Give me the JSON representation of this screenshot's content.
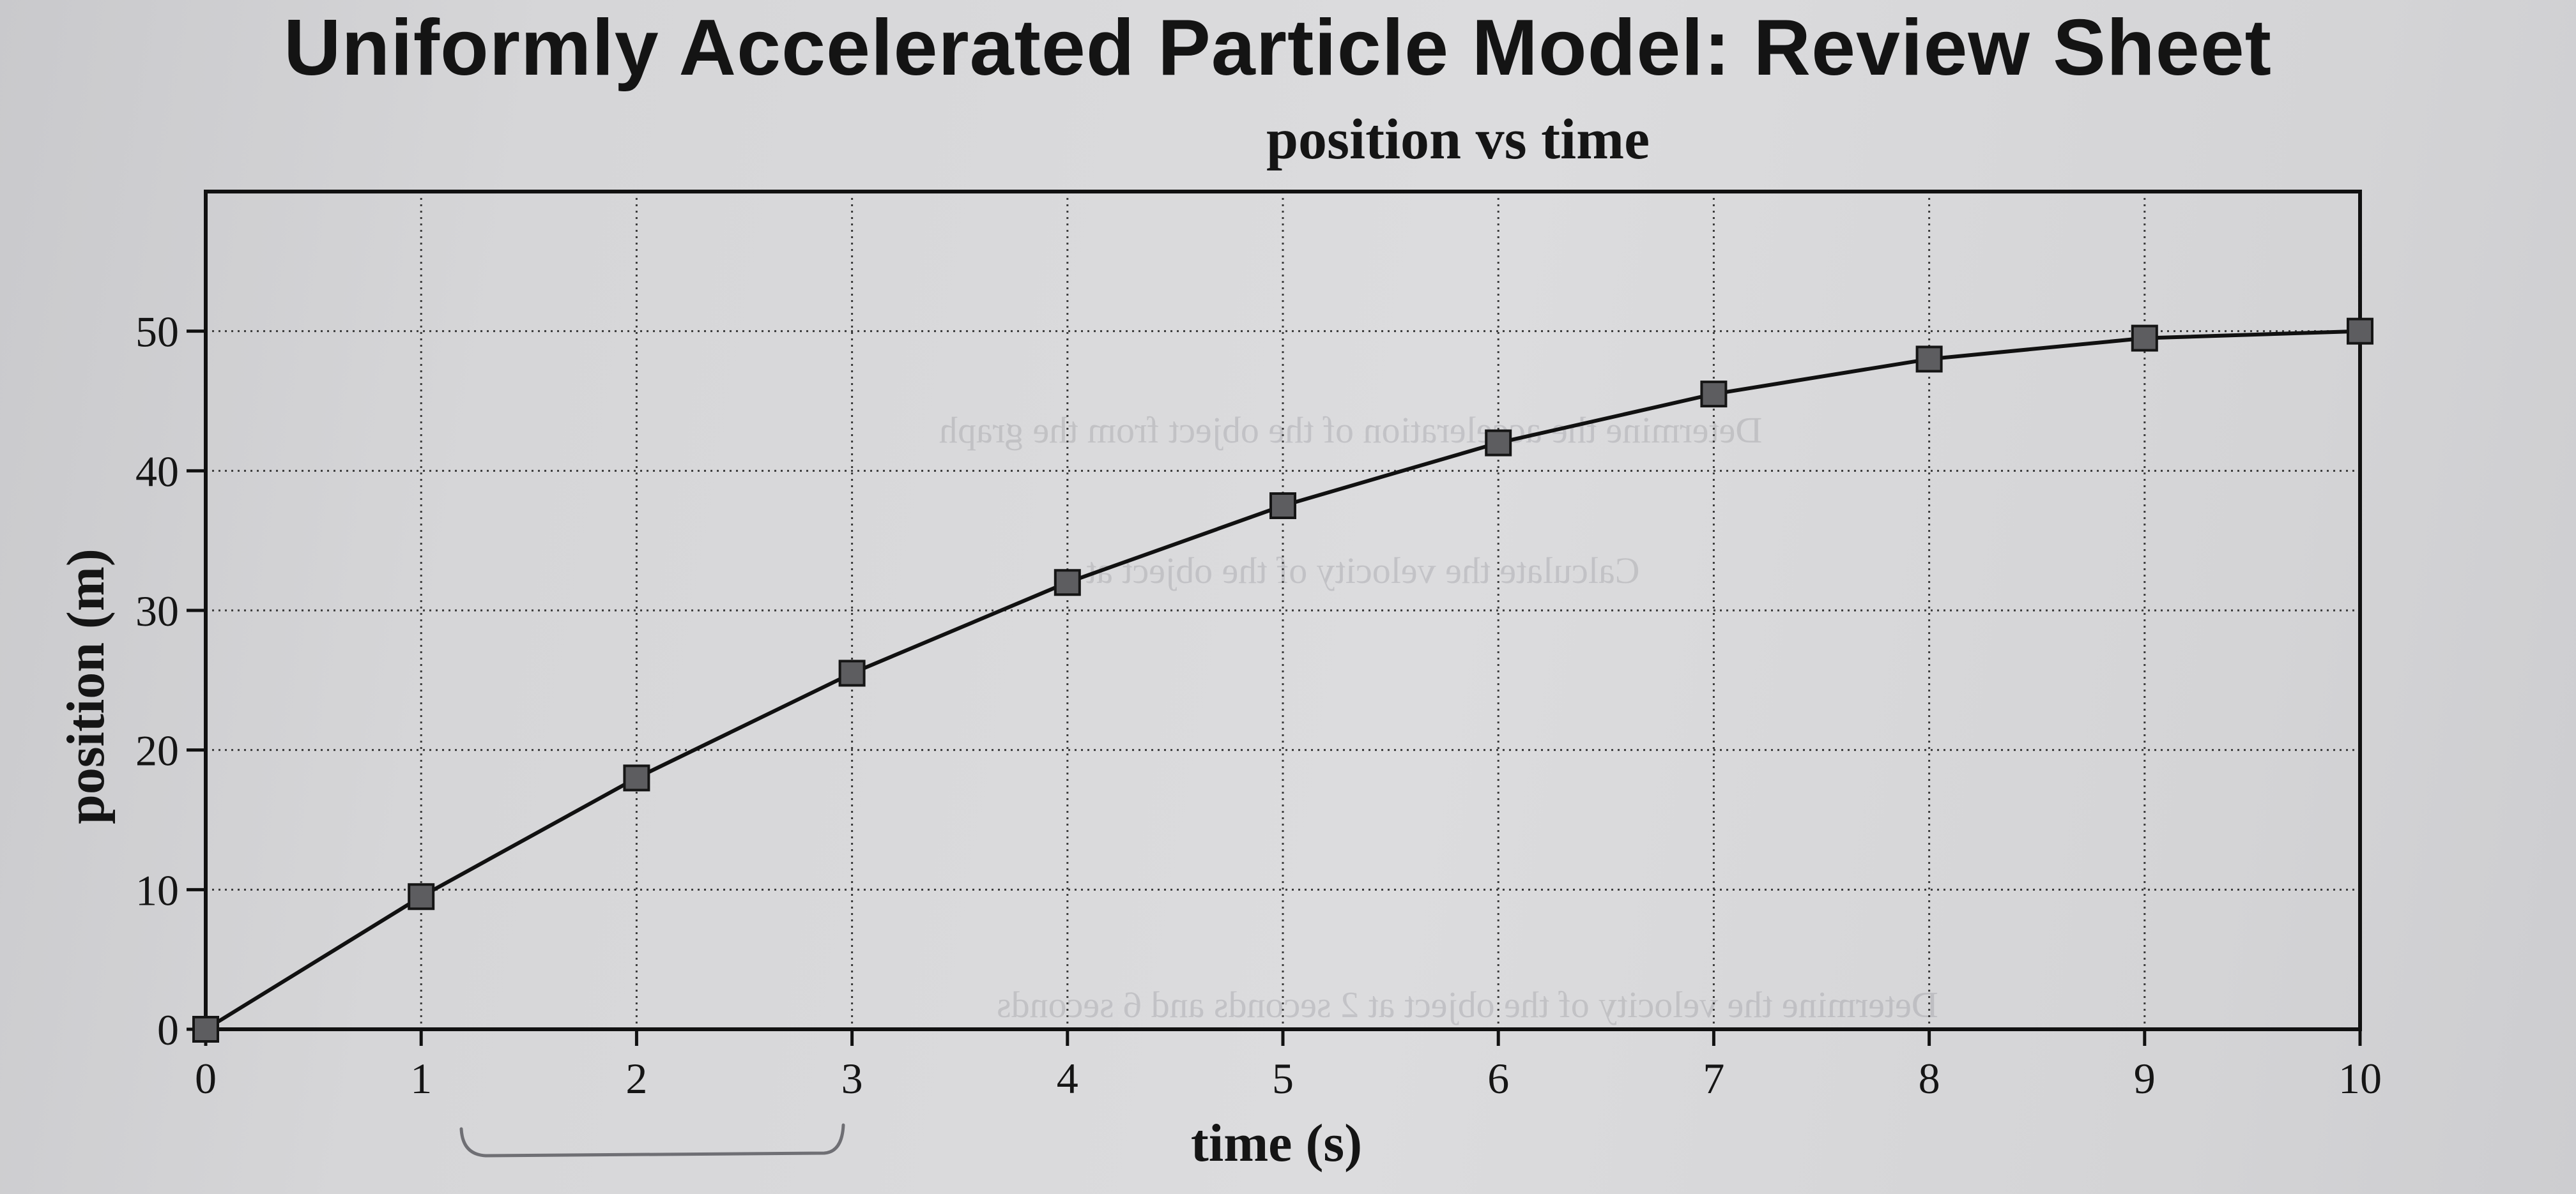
{
  "document": {
    "title": "Uniformly Accelerated Particle Model: Review Sheet"
  },
  "chart_data": {
    "type": "line",
    "title": "position vs time",
    "xlabel": "time (s)",
    "ylabel": "position (m)",
    "xlim": [
      0,
      10
    ],
    "ylim": [
      0,
      60
    ],
    "xticks": [
      0,
      1,
      2,
      3,
      4,
      5,
      6,
      7,
      8,
      9,
      10
    ],
    "yticks": [
      0,
      10,
      20,
      30,
      40,
      50
    ],
    "grid": true,
    "marker": "square",
    "series": [
      {
        "x": [
          0,
          1,
          2,
          3,
          4,
          5,
          6,
          7,
          8,
          9,
          10
        ],
        "y": [
          0,
          9.5,
          18,
          25.5,
          32,
          37.5,
          42,
          45.5,
          48,
          49.5,
          50
        ]
      }
    ]
  },
  "show_through": {
    "line_a": "Determine the acceleration of the object from the graph",
    "line_b": "Calculate the velocity of the object at",
    "line_c": "Determine the velocity of the object at 2 seconds and 6 seconds"
  }
}
